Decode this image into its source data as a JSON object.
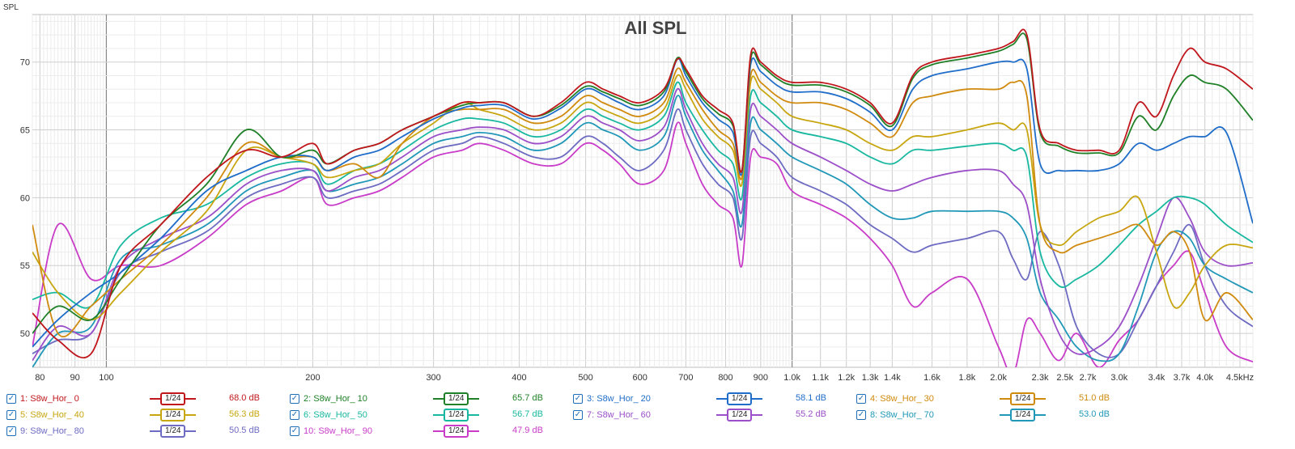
{
  "chart_data": {
    "type": "line",
    "title": "All SPL",
    "ylabel": "SPL",
    "xlabel": "",
    "x_scale": "log",
    "xlim": [
      78,
      4700
    ],
    "ylim": [
      47.5,
      73.5
    ],
    "y_ticks": [
      50,
      55,
      60,
      65,
      70
    ],
    "x_ticks": [
      {
        "f": 80,
        "label": "80"
      },
      {
        "f": 90,
        "label": "90"
      },
      {
        "f": 100,
        "label": "100"
      },
      {
        "f": 200,
        "label": "200"
      },
      {
        "f": 300,
        "label": "300"
      },
      {
        "f": 400,
        "label": "400"
      },
      {
        "f": 500,
        "label": "500"
      },
      {
        "f": 600,
        "label": "600"
      },
      {
        "f": 700,
        "label": "700"
      },
      {
        "f": 800,
        "label": "800"
      },
      {
        "f": 900,
        "label": "900"
      },
      {
        "f": 1000,
        "label": "1.0k"
      },
      {
        "f": 1100,
        "label": "1.1k"
      },
      {
        "f": 1200,
        "label": "1.2k"
      },
      {
        "f": 1300,
        "label": "1.3k"
      },
      {
        "f": 1400,
        "label": "1.4k"
      },
      {
        "f": 1600,
        "label": "1.6k"
      },
      {
        "f": 1800,
        "label": "1.8k"
      },
      {
        "f": 2000,
        "label": "2.0k"
      },
      {
        "f": 2300,
        "label": "2.3k"
      },
      {
        "f": 2500,
        "label": "2.5k"
      },
      {
        "f": 2700,
        "label": "2.7k"
      },
      {
        "f": 3000,
        "label": "3.0k"
      },
      {
        "f": 3400,
        "label": "3.4k"
      },
      {
        "f": 3700,
        "label": "3.7k"
      },
      {
        "f": 4000,
        "label": "4.0k"
      },
      {
        "f": 4500,
        "label": "4.5kHz"
      }
    ],
    "grid": true,
    "x": [
      78,
      85,
      95,
      105,
      120,
      140,
      160,
      180,
      200,
      210,
      230,
      250,
      270,
      300,
      330,
      350,
      380,
      420,
      460,
      500,
      530,
      560,
      600,
      650,
      680,
      700,
      740,
      780,
      820,
      845,
      870,
      900,
      950,
      1000,
      1100,
      1200,
      1300,
      1400,
      1500,
      1600,
      1800,
      2000,
      2100,
      2200,
      2300,
      2450,
      2600,
      2800,
      3000,
      3200,
      3400,
      3600,
      3800,
      4000,
      4300,
      4700
    ],
    "series": [
      {
        "name": "1: S8w_Hor_ 0",
        "color": "#c0171d",
        "smoothing": "1/24",
        "level": "68.0 dB",
        "values": [
          51.5,
          49.5,
          48.5,
          55.0,
          58.0,
          61.5,
          63.5,
          63.0,
          64.0,
          62.5,
          63.5,
          64.0,
          65.0,
          66.0,
          67.0,
          67.0,
          67.0,
          66.0,
          67.0,
          68.5,
          68.0,
          67.5,
          67.0,
          68.0,
          70.2,
          69.5,
          67.5,
          66.5,
          65.5,
          62.0,
          70.5,
          70.0,
          69.0,
          68.5,
          68.5,
          68.0,
          67.0,
          65.5,
          69.0,
          70.0,
          70.5,
          71.0,
          71.5,
          72.0,
          65.0,
          64.0,
          63.5,
          63.5,
          63.5,
          67.0,
          66.0,
          69.0,
          71.0,
          70.0,
          69.5,
          68.0
        ]
      },
      {
        "name": "2: S8w_Hor_ 10",
        "color": "#208028",
        "smoothing": "1/24",
        "level": "65.7 dB",
        "values": [
          50.0,
          52.0,
          51.0,
          54.0,
          58.0,
          61.0,
          65.0,
          63.0,
          63.5,
          62.5,
          63.5,
          64.0,
          65.0,
          66.0,
          66.8,
          67.0,
          67.0,
          66.0,
          66.8,
          68.2,
          67.8,
          67.3,
          66.8,
          67.8,
          70.3,
          69.3,
          67.3,
          66.2,
          65.3,
          62.0,
          70.2,
          69.8,
          68.8,
          68.3,
          68.3,
          67.8,
          66.8,
          65.3,
          68.8,
          69.8,
          70.3,
          70.8,
          71.3,
          71.7,
          64.8,
          63.8,
          63.3,
          63.3,
          63.3,
          66.0,
          65.0,
          67.5,
          69.0,
          68.5,
          68.0,
          65.7
        ]
      },
      {
        "name": "3: S8w_Hor_ 20",
        "color": "#1f6dc9",
        "smoothing": "1/24",
        "level": "58.1 dB",
        "values": [
          49.0,
          51.0,
          53.0,
          54.5,
          57.0,
          60.5,
          62.0,
          63.0,
          63.0,
          62.0,
          63.0,
          63.5,
          64.5,
          65.8,
          66.6,
          66.8,
          66.8,
          65.8,
          66.6,
          68.0,
          67.6,
          67.0,
          66.5,
          67.5,
          70.2,
          69.0,
          67.0,
          65.8,
          64.8,
          61.8,
          69.8,
          69.3,
          68.3,
          67.8,
          67.8,
          67.3,
          66.3,
          65.0,
          68.0,
          69.0,
          69.5,
          70.0,
          70.0,
          69.5,
          62.5,
          62.0,
          62.0,
          62.0,
          62.5,
          64.0,
          63.5,
          64.0,
          64.5,
          64.5,
          64.8,
          58.1
        ]
      },
      {
        "name": "4: S8w_Hor_ 30",
        "color": "#d08a0e",
        "smoothing": "1/24",
        "level": "51.0 dB",
        "values": [
          58.0,
          50.0,
          52.0,
          54.0,
          56.5,
          60.0,
          64.0,
          63.0,
          63.0,
          62.0,
          62.5,
          61.5,
          64.0,
          66.0,
          66.5,
          66.5,
          66.5,
          65.5,
          66.0,
          67.5,
          67.0,
          66.5,
          66.0,
          67.0,
          69.5,
          68.5,
          66.5,
          65.0,
          64.0,
          61.5,
          69.0,
          68.5,
          67.5,
          67.0,
          67.0,
          66.5,
          65.5,
          64.5,
          67.0,
          67.5,
          68.0,
          68.0,
          68.5,
          67.5,
          58.0,
          56.0,
          56.5,
          57.0,
          57.5,
          58.0,
          56.5,
          57.5,
          56.0,
          51.0,
          53.0,
          51.0
        ]
      },
      {
        "name": "5: S8w_Hor_ 40",
        "color": "#c8a610",
        "smoothing": "1/24",
        "level": "56.3 dB",
        "values": [
          56.0,
          53.0,
          51.0,
          53.0,
          56.0,
          59.0,
          63.5,
          63.0,
          62.5,
          61.5,
          62.0,
          62.5,
          64.0,
          65.5,
          67.0,
          66.5,
          66.0,
          65.0,
          65.5,
          67.0,
          66.5,
          66.0,
          65.5,
          66.5,
          69.0,
          68.0,
          65.8,
          64.5,
          63.5,
          61.0,
          68.5,
          68.0,
          67.0,
          66.0,
          65.5,
          65.0,
          64.0,
          63.5,
          64.5,
          64.5,
          65.0,
          65.5,
          65.0,
          65.0,
          58.0,
          56.5,
          57.5,
          58.5,
          59.0,
          60.0,
          56.0,
          52.0,
          53.0,
          55.0,
          56.5,
          56.3
        ]
      },
      {
        "name": "6: S8w_Hor_ 50",
        "color": "#18b8a0",
        "smoothing": "1/24",
        "level": "56.7 dB",
        "values": [
          52.5,
          53.0,
          52.0,
          56.5,
          58.5,
          59.5,
          61.5,
          62.5,
          62.5,
          61.0,
          62.0,
          62.5,
          63.5,
          65.0,
          65.8,
          65.8,
          65.5,
          64.5,
          65.0,
          66.5,
          66.0,
          65.5,
          65.0,
          66.0,
          68.5,
          67.0,
          65.0,
          63.5,
          62.5,
          60.0,
          67.5,
          67.0,
          66.0,
          65.0,
          64.5,
          64.0,
          63.0,
          62.5,
          63.5,
          63.5,
          63.8,
          64.0,
          63.5,
          63.0,
          56.0,
          53.5,
          54.0,
          55.0,
          56.5,
          58.0,
          59.0,
          60.0,
          60.0,
          59.5,
          58.0,
          56.7
        ]
      },
      {
        "name": "7: S8w_Hor_ 60",
        "color": "#9b4fc8",
        "smoothing": "1/24",
        "level": "55.2 dB",
        "values": [
          48.0,
          50.5,
          50.0,
          55.0,
          57.0,
          58.5,
          61.0,
          62.0,
          62.0,
          60.5,
          61.5,
          62.0,
          63.0,
          64.5,
          65.0,
          65.2,
          65.0,
          64.0,
          64.5,
          66.0,
          65.5,
          65.0,
          64.2,
          65.2,
          68.0,
          66.5,
          64.0,
          62.5,
          61.5,
          59.0,
          66.5,
          66.0,
          65.0,
          64.0,
          63.0,
          62.0,
          61.0,
          60.5,
          61.0,
          61.5,
          62.0,
          62.0,
          61.0,
          59.5,
          54.0,
          50.0,
          48.5,
          49.0,
          50.5,
          53.5,
          57.0,
          60.0,
          58.5,
          56.0,
          55.0,
          55.2
        ]
      },
      {
        "name": "8: S8w_Hor_ 70",
        "color": "#2198b8",
        "smoothing": "1/24",
        "level": "53.0 dB",
        "values": [
          47.5,
          50.0,
          50.5,
          55.5,
          56.5,
          58.0,
          60.5,
          61.5,
          62.0,
          60.5,
          61.0,
          61.5,
          62.5,
          64.0,
          64.5,
          64.8,
          64.5,
          63.5,
          64.0,
          65.5,
          65.0,
          64.5,
          63.5,
          64.5,
          67.5,
          66.0,
          63.5,
          62.0,
          60.5,
          58.0,
          65.5,
          65.0,
          64.0,
          63.0,
          62.0,
          61.0,
          59.5,
          58.5,
          58.5,
          59.0,
          59.0,
          59.0,
          58.5,
          57.0,
          53.0,
          51.0,
          49.0,
          48.0,
          48.5,
          52.0,
          56.0,
          57.5,
          57.0,
          55.0,
          54.0,
          53.0
        ]
      },
      {
        "name": "9: S8w_Hor_ 80",
        "color": "#6d6bc2",
        "smoothing": "1/24",
        "level": "50.5 dB",
        "values": [
          48.5,
          49.5,
          50.0,
          54.5,
          56.0,
          57.5,
          60.0,
          61.0,
          61.5,
          60.0,
          60.5,
          61.0,
          62.0,
          63.5,
          64.0,
          64.5,
          64.0,
          63.0,
          63.0,
          64.5,
          64.0,
          63.0,
          62.0,
          63.5,
          66.5,
          65.0,
          62.5,
          61.0,
          60.0,
          57.0,
          64.5,
          64.0,
          63.0,
          61.5,
          60.5,
          59.5,
          58.0,
          57.0,
          56.0,
          56.5,
          57.0,
          57.5,
          55.5,
          54.0,
          57.5,
          55.0,
          50.5,
          48.5,
          48.5,
          51.0,
          53.5,
          56.0,
          58.0,
          55.0,
          52.0,
          50.5
        ]
      },
      {
        "name": "10: S8w_Hor_ 90",
        "color": "#c83cc8",
        "smoothing": "1/24",
        "level": "47.9 dB",
        "values": [
          49.0,
          58.0,
          54.0,
          55.0,
          55.0,
          57.0,
          59.5,
          60.5,
          61.5,
          59.5,
          60.0,
          60.5,
          61.5,
          63.0,
          63.5,
          64.0,
          63.5,
          62.5,
          62.5,
          64.0,
          63.5,
          62.5,
          61.0,
          62.0,
          65.5,
          64.0,
          61.0,
          59.5,
          58.5,
          55.0,
          63.0,
          63.0,
          62.5,
          60.5,
          59.5,
          58.5,
          57.0,
          55.0,
          52.0,
          53.0,
          54.0,
          49.0,
          47.0,
          51.0,
          50.0,
          48.0,
          50.0,
          47.5,
          49.5,
          51.0,
          53.5,
          55.0,
          56.0,
          53.0,
          49.0,
          47.9
        ]
      }
    ]
  }
}
